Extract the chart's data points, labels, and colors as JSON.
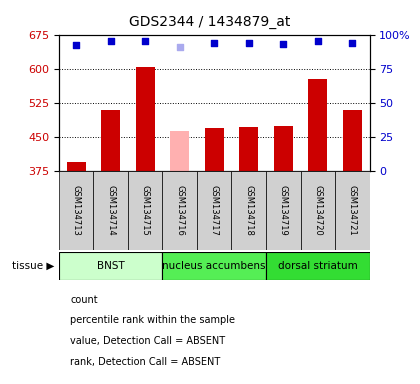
{
  "title": "GDS2344 / 1434879_at",
  "samples": [
    "GSM134713",
    "GSM134714",
    "GSM134715",
    "GSM134716",
    "GSM134717",
    "GSM134718",
    "GSM134719",
    "GSM134720",
    "GSM134721"
  ],
  "bar_values": [
    395,
    510,
    603,
    463,
    470,
    472,
    473,
    578,
    510
  ],
  "bar_colors": [
    "#cc0000",
    "#cc0000",
    "#cc0000",
    "#ffb0b0",
    "#cc0000",
    "#cc0000",
    "#cc0000",
    "#cc0000",
    "#cc0000"
  ],
  "rank_values": [
    92,
    95,
    95,
    91,
    94,
    94,
    93,
    95,
    94
  ],
  "rank_colors": [
    "#0000cc",
    "#0000cc",
    "#0000cc",
    "#aaaaee",
    "#0000cc",
    "#0000cc",
    "#0000cc",
    "#0000cc",
    "#0000cc"
  ],
  "ylim_left": [
    375,
    675
  ],
  "ylim_right": [
    0,
    100
  ],
  "yticks_left": [
    375,
    450,
    525,
    600,
    675
  ],
  "yticks_right": [
    0,
    25,
    50,
    75,
    100
  ],
  "grid_values": [
    450,
    525,
    600
  ],
  "tissues": [
    {
      "label": "BNST",
      "start": 0,
      "end": 2,
      "color": "#ccffcc"
    },
    {
      "label": "nucleus accumbens",
      "start": 3,
      "end": 5,
      "color": "#55ee55"
    },
    {
      "label": "dorsal striatum",
      "start": 6,
      "end": 8,
      "color": "#33dd33"
    }
  ],
  "legend_items": [
    {
      "color": "#cc0000",
      "label": "count"
    },
    {
      "color": "#0000cc",
      "label": "percentile rank within the sample"
    },
    {
      "color": "#ffb0b0",
      "label": "value, Detection Call = ABSENT"
    },
    {
      "color": "#aaaaee",
      "label": "rank, Detection Call = ABSENT"
    }
  ],
  "tissue_label": "tissue ▶",
  "bar_width": 0.55,
  "bg_color": "#ffffff",
  "plot_bg": "#ffffff",
  "tick_label_color_left": "#cc0000",
  "tick_label_color_right": "#0000cc",
  "title_color": "#000000",
  "sample_box_color": "#d0d0d0"
}
